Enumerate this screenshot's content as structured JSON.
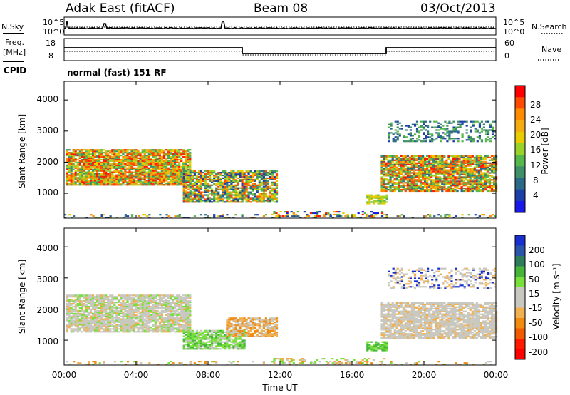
{
  "header": {
    "radar": "Adak East (fitACF)",
    "beam": "Beam 08",
    "date": "03/Oct/2013"
  },
  "noise_panel": {
    "left_label": "N.Sky",
    "right_label": "N.Search",
    "left_ticks": [
      "10^5",
      "10^0"
    ],
    "right_ticks": [
      "10^5",
      "10^0"
    ]
  },
  "freq_panel": {
    "left_label_1": "Freq.",
    "left_label_2": "[MHz]",
    "right_label": "Nave",
    "left_ticks": [
      "18",
      "8"
    ],
    "right_ticks": [
      "60",
      "0"
    ],
    "cpid_label": "CPID",
    "cpid_text": "normal (fast) 151 RF"
  },
  "time_axis": {
    "label": "Time UT",
    "ticks": [
      "00:00",
      "04:00",
      "08:00",
      "12:00",
      "16:00",
      "20:00",
      "00:00"
    ]
  },
  "chart_data": [
    {
      "type": "heatmap",
      "title": "",
      "xlabel": "",
      "ylabel": "Slant Range [km]",
      "xlim": [
        0,
        24
      ],
      "ylim": [
        200,
        4600
      ],
      "y_ticks": [
        "1000",
        "2000",
        "3000",
        "4000"
      ],
      "colorbar": {
        "label": "Power [dB]",
        "ticks": [
          "28",
          "24",
          "20",
          "16",
          "12",
          "8",
          "4"
        ],
        "colors": [
          "#ff0000",
          "#ff4a00",
          "#ff8c00",
          "#f4ac10",
          "#e8cc00",
          "#9ad22a",
          "#56b84a",
          "#3f8f68",
          "#2a6a86",
          "#1f3fa8",
          "#1818e8"
        ]
      }
    },
    {
      "type": "heatmap",
      "title": "",
      "xlabel": "",
      "ylabel": "Slant Range [km]",
      "xlim": [
        0,
        24
      ],
      "ylim": [
        200,
        4600
      ],
      "y_ticks": [
        "1000",
        "2000",
        "3000",
        "4000"
      ],
      "colorbar": {
        "label": "Velocity [m s⁻¹]",
        "ticks": [
          "200",
          "100",
          "50",
          "15",
          "-15",
          "-50",
          "-100",
          "-200"
        ],
        "colors": [
          "#1a2fd0",
          "#2b55a8",
          "#2f7c5a",
          "#46b53a",
          "#78e03a",
          "#c8c8c0",
          "#c8c8c0",
          "#f0b050",
          "#f08a10",
          "#f05a00",
          "#ff1a00",
          "#ff0000"
        ]
      }
    }
  ]
}
